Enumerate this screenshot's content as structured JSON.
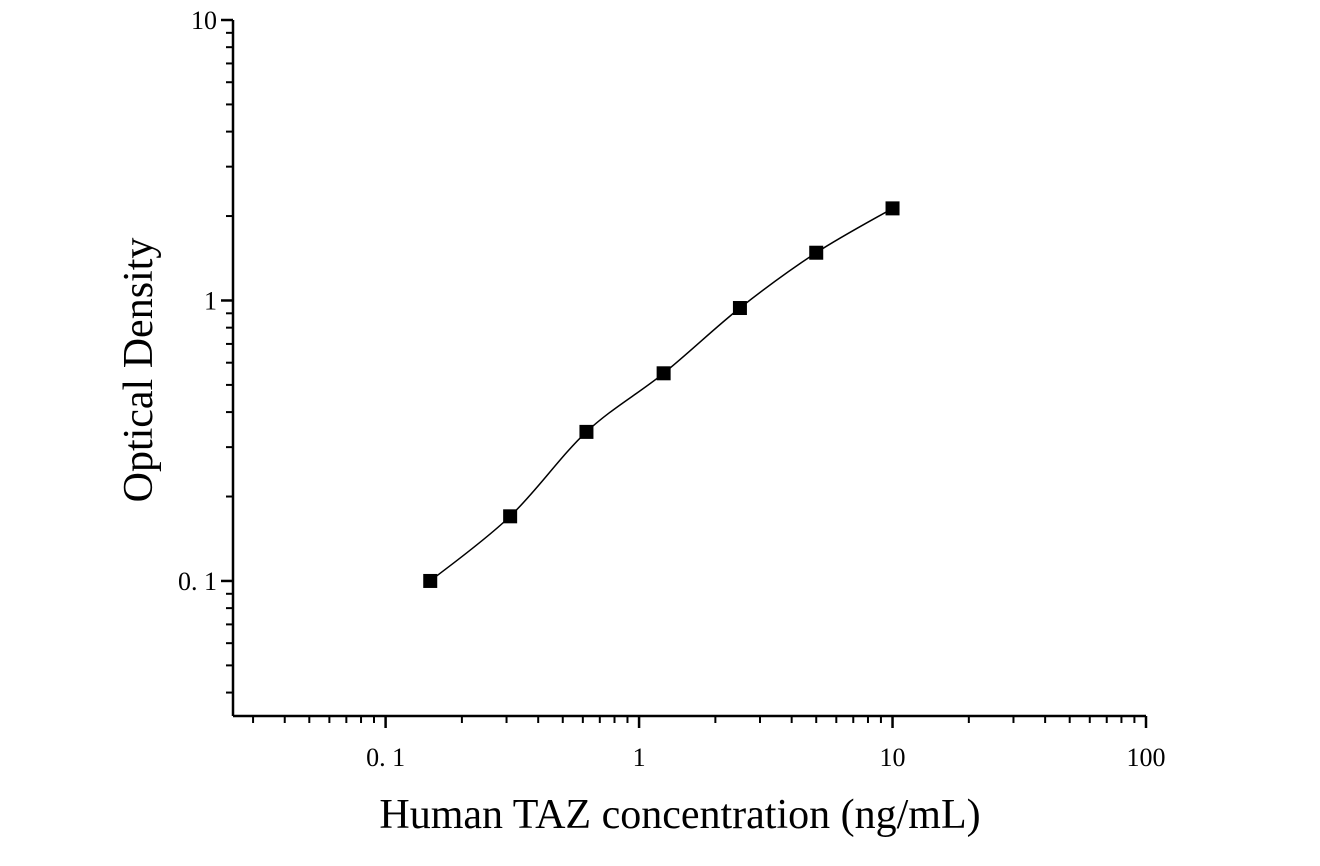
{
  "chart_data": {
    "type": "scatter",
    "title": "",
    "xlabel": "Human TAZ concentration (ng/mL)",
    "ylabel": "Optical Density",
    "x_scale": "log",
    "y_scale": "log",
    "xlim": [
      0.025,
      100
    ],
    "ylim": [
      0.033,
      10
    ],
    "x_ticks": [
      {
        "value": 0.1,
        "label": "0. 1"
      },
      {
        "value": 1,
        "label": "1"
      },
      {
        "value": 10,
        "label": "10"
      },
      {
        "value": 100,
        "label": "100"
      }
    ],
    "y_ticks": [
      {
        "value": 0.1,
        "label": "0. 1"
      },
      {
        "value": 1,
        "label": "1"
      },
      {
        "value": 10,
        "label": "10"
      }
    ],
    "grid": false,
    "legend": "none",
    "series": [
      {
        "marker": "square",
        "color": "#000000",
        "x": [
          0.15,
          0.31,
          0.62,
          1.25,
          2.5,
          5,
          10
        ],
        "y": [
          0.1,
          0.17,
          0.34,
          0.55,
          0.94,
          1.48,
          2.13
        ]
      }
    ],
    "fit_curve": {
      "style": "smooth line through points",
      "color": "#000000"
    }
  }
}
